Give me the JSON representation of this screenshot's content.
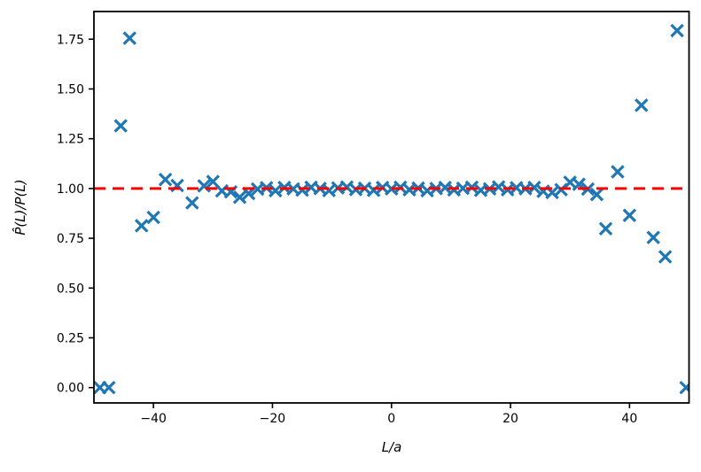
{
  "chart_data": {
    "type": "scatter",
    "title": "",
    "xlabel": "L/a",
    "ylabel": "P̂(L)/P(L)",
    "marker": "x",
    "grid": false,
    "legend": null,
    "xlim": [
      -50,
      50
    ],
    "ylim": [
      -0.077,
      1.889
    ],
    "xticks": [
      -40,
      -20,
      0,
      20,
      40
    ],
    "xtick_labels": [
      "−40",
      "−20",
      "0",
      "20",
      "40"
    ],
    "yticks": [
      0.0,
      0.25,
      0.5,
      0.75,
      1.0,
      1.25,
      1.5,
      1.75
    ],
    "ytick_labels": [
      "0.00",
      "0.25",
      "0.50",
      "0.75",
      "1.00",
      "1.25",
      "1.50",
      "1.75"
    ],
    "reference_line": {
      "y": 1.0,
      "style": "dashed",
      "color": "#ff0000"
    },
    "style": {
      "marker_color": "#1f77b4",
      "line_color": "#ff0000",
      "spine_color": "#000000",
      "text_color": "#000000",
      "background": "#ffffff"
    },
    "points": [
      [
        -49.0,
        0.0
      ],
      [
        -47.5,
        0.0
      ],
      [
        -45.5,
        1.315
      ],
      [
        -44.0,
        1.755
      ],
      [
        -42.0,
        0.813
      ],
      [
        -40.0,
        0.855
      ],
      [
        -38.0,
        1.045
      ],
      [
        -36.0,
        1.015
      ],
      [
        -33.5,
        0.928
      ],
      [
        -31.5,
        1.013
      ],
      [
        -30.0,
        1.035
      ],
      [
        -28.5,
        0.988
      ],
      [
        -27.0,
        0.983
      ],
      [
        -25.5,
        0.956
      ],
      [
        -24.0,
        0.975
      ],
      [
        -22.5,
        0.997
      ],
      [
        -21.0,
        1.004
      ],
      [
        -19.5,
        0.989
      ],
      [
        -18.0,
        1.005
      ],
      [
        -16.5,
        0.998
      ],
      [
        -15.0,
        0.992
      ],
      [
        -13.5,
        1.006
      ],
      [
        -12.0,
        1.0
      ],
      [
        -10.5,
        0.99
      ],
      [
        -9.0,
        1.003
      ],
      [
        -7.5,
        1.007
      ],
      [
        -6.0,
        0.995
      ],
      [
        -4.5,
        1.001
      ],
      [
        -3.0,
        0.991
      ],
      [
        -1.5,
        1.005
      ],
      [
        0.0,
        0.998
      ],
      [
        1.5,
        1.006
      ],
      [
        3.0,
        0.994
      ],
      [
        4.5,
        1.002
      ],
      [
        6.0,
        0.989
      ],
      [
        7.5,
        1.0
      ],
      [
        9.0,
        1.005
      ],
      [
        10.5,
        0.993
      ],
      [
        12.0,
        1.001
      ],
      [
        13.5,
        1.006
      ],
      [
        15.0,
        0.991
      ],
      [
        16.5,
        0.998
      ],
      [
        18.0,
        1.008
      ],
      [
        19.5,
        0.994
      ],
      [
        21.0,
        1.004
      ],
      [
        22.5,
        0.999
      ],
      [
        24.0,
        1.005
      ],
      [
        25.5,
        0.986
      ],
      [
        27.0,
        0.98
      ],
      [
        28.5,
        0.994
      ],
      [
        30.0,
        1.031
      ],
      [
        31.5,
        1.021
      ],
      [
        33.0,
        0.997
      ],
      [
        34.5,
        0.97
      ],
      [
        36.0,
        0.798
      ],
      [
        38.0,
        1.084
      ],
      [
        40.0,
        0.865
      ],
      [
        42.0,
        1.418
      ],
      [
        44.0,
        0.754
      ],
      [
        46.0,
        0.657
      ],
      [
        48.0,
        1.793
      ],
      [
        49.5,
        0.0
      ]
    ]
  }
}
